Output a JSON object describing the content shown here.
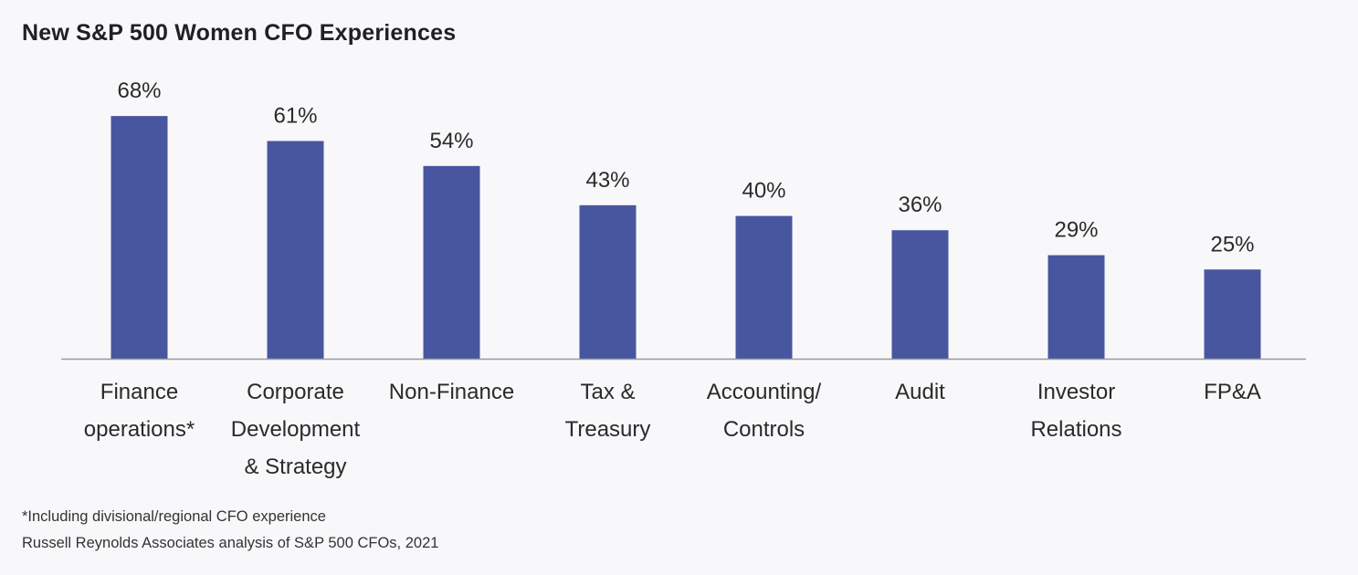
{
  "chart_data": {
    "type": "bar",
    "title": "New S&P 500 Women CFO Experiences",
    "categories": [
      [
        "Finance",
        "operations*"
      ],
      [
        "Corporate",
        "Development",
        "& Strategy"
      ],
      [
        "Non-Finance"
      ],
      [
        "Tax &",
        "Treasury"
      ],
      [
        "Accounting/",
        "Controls"
      ],
      [
        "Audit"
      ],
      [
        "Investor",
        "Relations"
      ],
      [
        "FP&A"
      ]
    ],
    "values": [
      68,
      61,
      54,
      43,
      40,
      36,
      29,
      25
    ],
    "data_labels": [
      "68%",
      "61%",
      "54%",
      "43%",
      "40%",
      "36%",
      "29%",
      "25%"
    ],
    "xlabel": "",
    "ylabel": "",
    "ylim": [
      0,
      100
    ],
    "grid": false,
    "legend": "none",
    "bar_color": "#4856a0",
    "axis_color": "#9a9aa2"
  },
  "footnotes": [
    "*Including divisional/regional CFO experience",
    "Russell Reynolds Associates analysis of S&P 500 CFOs, 2021"
  ]
}
